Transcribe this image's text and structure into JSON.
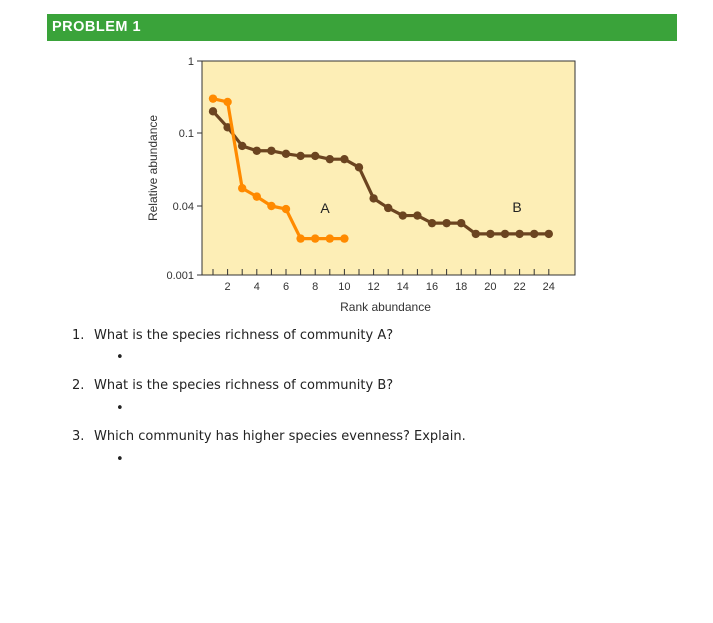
{
  "banner": {
    "title": "PROBLEM 1"
  },
  "chart_data": {
    "type": "line",
    "xlabel": "Rank abundance",
    "ylabel": "Relative abundance",
    "x_ticks": [
      2,
      4,
      6,
      8,
      10,
      12,
      14,
      16,
      18,
      20,
      22,
      24
    ],
    "y_ticks": [
      "1",
      "0.1",
      "0.04",
      "0.001"
    ],
    "xlim": [
      0,
      25
    ],
    "y_scale": "categorical-log",
    "grid": false,
    "background_color": "#fdeeb6",
    "series": [
      {
        "name": "A",
        "color": "#ff8a00",
        "x": [
          1,
          2,
          3,
          4,
          5,
          6,
          7,
          8,
          9,
          10
        ],
        "y": [
          0.3,
          0.27,
          0.05,
          0.045,
          0.04,
          0.034,
          0.007,
          0.007,
          0.007,
          0.007
        ]
      },
      {
        "name": "B",
        "color": "#6b4420",
        "x": [
          1,
          2,
          3,
          4,
          5,
          6,
          7,
          8,
          9,
          10,
          11,
          12,
          13,
          14,
          15,
          16,
          17,
          18,
          19,
          20,
          21,
          22,
          23,
          24
        ],
        "y": [
          0.2,
          0.12,
          0.085,
          0.08,
          0.08,
          0.077,
          0.075,
          0.075,
          0.072,
          0.072,
          0.065,
          0.044,
          0.036,
          0.024,
          0.024,
          0.016,
          0.016,
          0.016,
          0.009,
          0.009,
          0.009,
          0.009,
          0.009,
          0.009
        ]
      }
    ]
  },
  "questions": [
    {
      "num": "1.",
      "text": "What is the species richness of community A?",
      "bullet": "•"
    },
    {
      "num": "2.",
      "text": "What is the species richness of community B?",
      "bullet": "•"
    },
    {
      "num": "3.",
      "text": "Which community has higher species evenness? Explain.",
      "bullet": "•"
    }
  ]
}
